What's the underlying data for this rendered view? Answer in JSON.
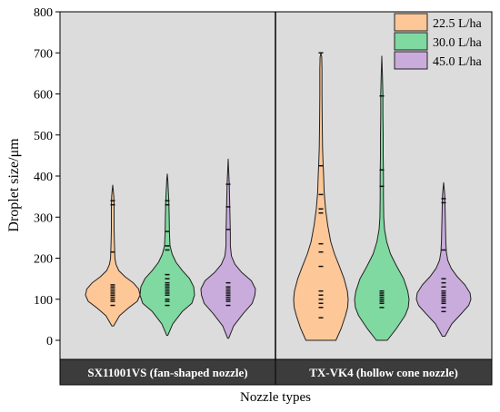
{
  "chart_data": {
    "type": "violin",
    "ylabel": "Droplet size/μm",
    "xlabel": "Nozzle types",
    "ylim": [
      0,
      800
    ],
    "yticks": [
      0,
      100,
      200,
      300,
      400,
      500,
      600,
      700,
      800
    ],
    "grid": false,
    "legend_position": "top-right",
    "panels": [
      {
        "label": "SX11001VS (fan-shaped nozzle)",
        "violins": [
          {
            "series": "22.5 L/ha",
            "min": 35,
            "max": 378,
            "profile": [
              [
                35,
                0.03
              ],
              [
                60,
                0.25
              ],
              [
                80,
                0.6
              ],
              [
                95,
                0.9
              ],
              [
                110,
                1.0
              ],
              [
                125,
                0.95
              ],
              [
                140,
                0.75
              ],
              [
                155,
                0.45
              ],
              [
                170,
                0.22
              ],
              [
                185,
                0.12
              ],
              [
                200,
                0.08
              ],
              [
                220,
                0.07
              ],
              [
                240,
                0.06
              ],
              [
                270,
                0.05
              ],
              [
                300,
                0.05
              ],
              [
                330,
                0.05
              ],
              [
                350,
                0.04
              ],
              [
                365,
                0.02
              ],
              [
                378,
                0
              ]
            ],
            "samples": [
              85,
              95,
              100,
              105,
              110,
              115,
              120,
              125,
              130,
              135,
              215,
              330,
              340
            ]
          },
          {
            "series": "30.0 L/ha",
            "min": 12,
            "max": 405,
            "profile": [
              [
                12,
                0.02
              ],
              [
                40,
                0.2
              ],
              [
                70,
                0.55
              ],
              [
                90,
                0.9
              ],
              [
                110,
                1.0
              ],
              [
                130,
                0.97
              ],
              [
                150,
                0.82
              ],
              [
                170,
                0.55
              ],
              [
                190,
                0.32
              ],
              [
                210,
                0.18
              ],
              [
                230,
                0.1
              ],
              [
                260,
                0.08
              ],
              [
                300,
                0.07
              ],
              [
                330,
                0.06
              ],
              [
                350,
                0.05
              ],
              [
                375,
                0.03
              ],
              [
                390,
                0.02
              ],
              [
                405,
                0
              ]
            ],
            "samples": [
              85,
              95,
              100,
              110,
              115,
              120,
              125,
              130,
              135,
              140,
              150,
              160,
              220,
              230,
              265,
              330,
              340
            ]
          },
          {
            "series": "45.0 L/ha",
            "min": 5,
            "max": 441,
            "profile": [
              [
                5,
                0.02
              ],
              [
                35,
                0.2
              ],
              [
                65,
                0.55
              ],
              [
                90,
                0.88
              ],
              [
                110,
                0.98
              ],
              [
                125,
                1.0
              ],
              [
                145,
                0.85
              ],
              [
                165,
                0.5
              ],
              [
                185,
                0.25
              ],
              [
                205,
                0.12
              ],
              [
                230,
                0.08
              ],
              [
                260,
                0.08
              ],
              [
                290,
                0.07
              ],
              [
                320,
                0.06
              ],
              [
                350,
                0.05
              ],
              [
                380,
                0.04
              ],
              [
                410,
                0.02
              ],
              [
                441,
                0
              ]
            ],
            "samples": [
              85,
              95,
              100,
              105,
              110,
              115,
              120,
              125,
              130,
              140,
              270,
              325,
              380
            ]
          }
        ]
      },
      {
        "label": "TX-VK4 (hollow cone nozzle)",
        "violins": [
          {
            "series": "22.5 L/ha",
            "min": 0,
            "max": 700,
            "profile": [
              [
                0,
                0.55
              ],
              [
                30,
                0.75
              ],
              [
                60,
                0.9
              ],
              [
                80,
                0.98
              ],
              [
                100,
                1.0
              ],
              [
                120,
                0.97
              ],
              [
                150,
                0.85
              ],
              [
                180,
                0.68
              ],
              [
                210,
                0.5
              ],
              [
                240,
                0.36
              ],
              [
                280,
                0.25
              ],
              [
                320,
                0.17
              ],
              [
                360,
                0.12
              ],
              [
                400,
                0.1
              ],
              [
                430,
                0.08
              ],
              [
                470,
                0.06
              ],
              [
                520,
                0.05
              ],
              [
                600,
                0.04
              ],
              [
                660,
                0.04
              ],
              [
                690,
                0.03
              ],
              [
                700,
                0.0
              ]
            ],
            "samples": [
              55,
              80,
              90,
              100,
              110,
              120,
              180,
              215,
              235,
              310,
              320,
              355,
              425,
              700
            ]
          },
          {
            "series": "30.0 L/ha",
            "min": 0,
            "max": 692,
            "profile": [
              [
                0,
                0.2
              ],
              [
                30,
                0.55
              ],
              [
                60,
                0.85
              ],
              [
                80,
                0.97
              ],
              [
                100,
                1.0
              ],
              [
                120,
                0.95
              ],
              [
                150,
                0.8
              ],
              [
                180,
                0.55
              ],
              [
                210,
                0.32
              ],
              [
                240,
                0.18
              ],
              [
                270,
                0.1
              ],
              [
                300,
                0.07
              ],
              [
                350,
                0.06
              ],
              [
                400,
                0.06
              ],
              [
                450,
                0.05
              ],
              [
                500,
                0.05
              ],
              [
                550,
                0.04
              ],
              [
                600,
                0.04
              ],
              [
                650,
                0.02
              ],
              [
                692,
                0
              ]
            ],
            "samples": [
              80,
              90,
              95,
              100,
              105,
              110,
              115,
              120,
              375,
              415,
              595
            ]
          },
          {
            "series": "45.0 L/ha",
            "min": 10,
            "max": 384,
            "profile": [
              [
                10,
                0.05
              ],
              [
                40,
                0.3
              ],
              [
                65,
                0.65
              ],
              [
                85,
                0.92
              ],
              [
                100,
                1.0
              ],
              [
                115,
                0.97
              ],
              [
                135,
                0.78
              ],
              [
                155,
                0.5
              ],
              [
                175,
                0.28
              ],
              [
                195,
                0.15
              ],
              [
                215,
                0.1
              ],
              [
                240,
                0.08
              ],
              [
                270,
                0.07
              ],
              [
                300,
                0.06
              ],
              [
                330,
                0.05
              ],
              [
                355,
                0.04
              ],
              [
                370,
                0.02
              ],
              [
                384,
                0
              ]
            ],
            "samples": [
              70,
              80,
              90,
              95,
              100,
              105,
              110,
              115,
              120,
              130,
              140,
              150,
              220,
              335,
              345
            ]
          }
        ]
      }
    ],
    "series": [
      {
        "name": "22.5 L/ha",
        "color": "#fdc798"
      },
      {
        "name": "30.0 L/ha",
        "color": "#7fd9a0"
      },
      {
        "name": "45.0 L/ha",
        "color": "#c9acdc"
      }
    ],
    "colors": {
      "plot_bg": "#dcdcdc",
      "panel_label_bg": "#3c3c3c",
      "panel_label_text": "#ffffff",
      "violin_stroke": "#222222"
    }
  }
}
